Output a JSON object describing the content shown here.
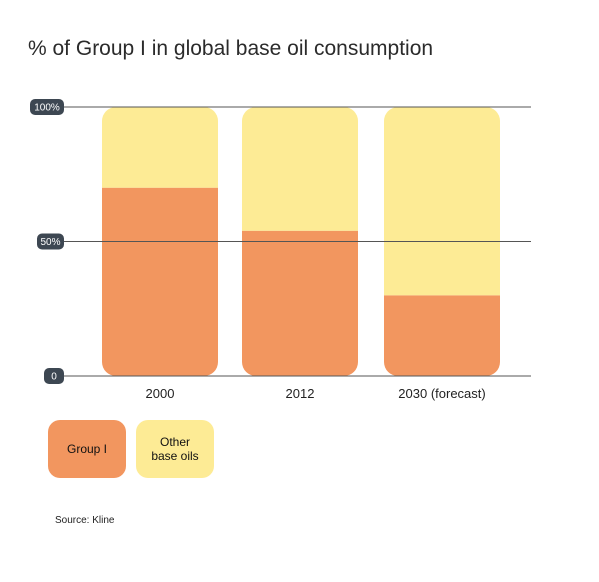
{
  "title": "% of Group I in global base oil consumption",
  "source": "Source: Kline",
  "colors": {
    "group1": "#f2965f",
    "other": "#fdeb95",
    "tick_pill": "#3d4752",
    "axis": "#555555"
  },
  "chart_data": {
    "type": "bar",
    "stacked": true,
    "title": "% of Group I in global base oil consumption",
    "categories": [
      "2000",
      "2012",
      "2030 (forecast)"
    ],
    "series": [
      {
        "name": "Group I",
        "values": [
          70,
          54,
          30
        ]
      },
      {
        "name": "Other base oils",
        "values": [
          30,
          46,
          70
        ]
      }
    ],
    "ylim": [
      0,
      100
    ],
    "y_ticks": [
      {
        "value": 100,
        "label": "100%"
      },
      {
        "value": 50,
        "label": "50%"
      },
      {
        "value": 0,
        "label": "0"
      }
    ],
    "legend": {
      "position": "bottom-left",
      "items": [
        {
          "label_lines": [
            "Group I"
          ]
        },
        {
          "label_lines": [
            "Other",
            "base oils"
          ]
        }
      ]
    },
    "grid": true
  }
}
